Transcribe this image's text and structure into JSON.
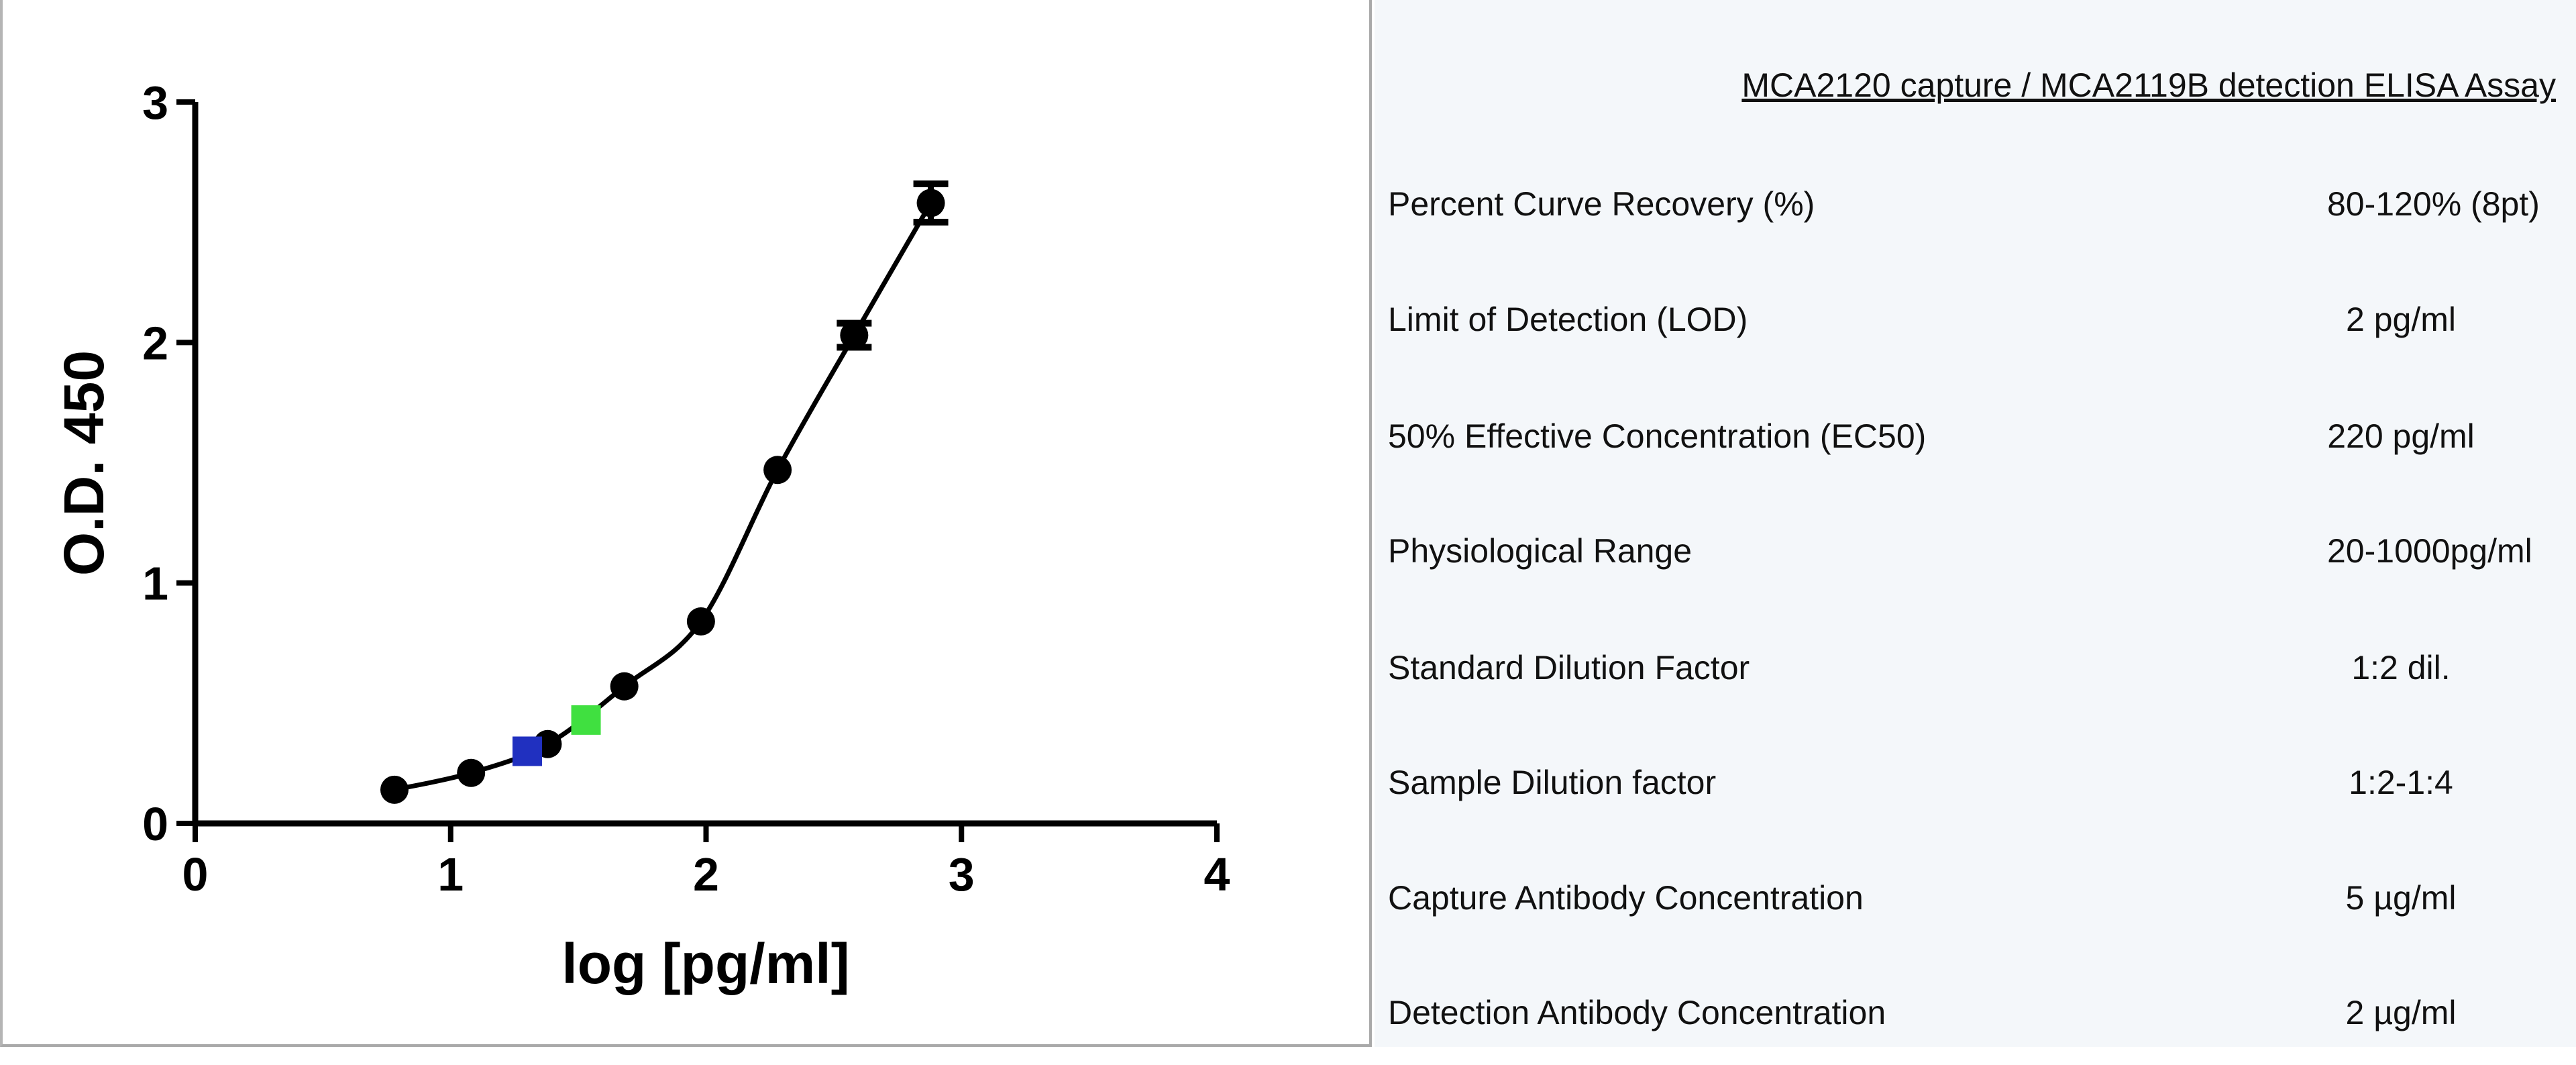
{
  "chart_data": {
    "type": "scatter",
    "xlabel": "log [pg/ml]",
    "ylabel": "O.D. 450",
    "xlim": [
      0,
      4
    ],
    "ylim": [
      0,
      3
    ],
    "xticks": [
      "0",
      "1",
      "2",
      "3",
      "4"
    ],
    "yticks": [
      "0",
      "1",
      "2",
      "3"
    ],
    "grid": false,
    "series": [
      {
        "marker": "circle",
        "color": "#000000",
        "fit_line": true,
        "x": [
          0.78,
          1.08,
          1.38,
          1.68,
          1.98,
          2.28,
          2.58,
          2.88
        ],
        "y": [
          0.14,
          0.21,
          0.33,
          0.57,
          0.84,
          1.47,
          2.03,
          2.58
        ],
        "error": [
          0.02,
          0.02,
          0.02,
          0.02,
          0.03,
          0.02,
          0.05,
          0.08
        ]
      },
      {
        "marker": "square",
        "color": "#2030c0",
        "x": [
          1.3
        ],
        "y": [
          0.3
        ]
      },
      {
        "marker": "square",
        "color": "#40e040",
        "x": [
          1.53
        ],
        "y": [
          0.43
        ]
      }
    ]
  },
  "table": {
    "title": "MCA2120 capture / MCA2119B detection ELISA Assay",
    "rows": [
      {
        "label": "Percent Curve Recovery (%)",
        "value": "80-120% (8pt)"
      },
      {
        "label": "Limit of Detection (LOD)",
        "value": "2 pg/ml"
      },
      {
        "label": "50% Effective Concentration (EC50)",
        "value": "220 pg/ml"
      },
      {
        "label": "Physiological Range",
        "value": "20-1000pg/ml"
      },
      {
        "label": "Standard Dilution Factor",
        "value": "1:2 dil."
      },
      {
        "label": "Sample Dilution factor",
        "value": "1:2-1:4"
      },
      {
        "label": "Capture Antibody Concentration",
        "value": "5 µg/ml"
      },
      {
        "label": "Detection Antibody Concentration",
        "value": "2 µg/ml"
      }
    ]
  }
}
